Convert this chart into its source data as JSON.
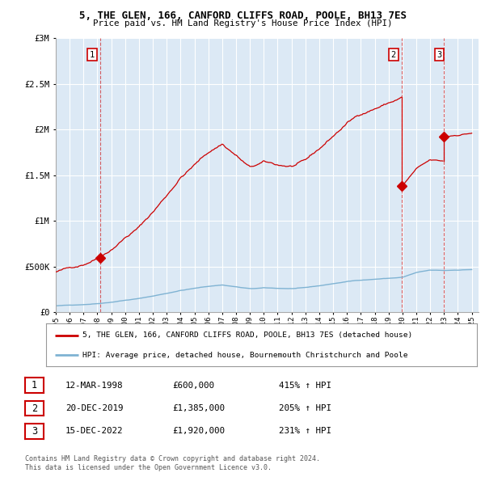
{
  "title": "5, THE GLEN, 166, CANFORD CLIFFS ROAD, POOLE, BH13 7ES",
  "subtitle": "Price paid vs. HM Land Registry's House Price Index (HPI)",
  "legend_line1": "5, THE GLEN, 166, CANFORD CLIFFS ROAD, POOLE, BH13 7ES (detached house)",
  "legend_line2": "HPI: Average price, detached house, Bournemouth Christchurch and Poole",
  "sales": [
    {
      "label": "1",
      "date": "12-MAR-1998",
      "price": 600000,
      "year": 1998.21,
      "hpi_pct": "415% ↑ HPI"
    },
    {
      "label": "2",
      "date": "20-DEC-2019",
      "price": 1385000,
      "year": 2019.96,
      "hpi_pct": "205% ↑ HPI"
    },
    {
      "label": "3",
      "date": "15-DEC-2022",
      "price": 1920000,
      "year": 2022.96,
      "hpi_pct": "231% ↑ HPI"
    }
  ],
  "footer_line1": "Contains HM Land Registry data © Crown copyright and database right 2024.",
  "footer_line2": "This data is licensed under the Open Government Licence v3.0.",
  "ylim": [
    0,
    3000000
  ],
  "xlim": [
    1995.0,
    2025.5
  ],
  "property_color": "#cc0000",
  "hpi_color": "#7fb3d3",
  "chart_bg": "#dce9f5",
  "background_color": "#ffffff",
  "grid_color": "#ffffff"
}
